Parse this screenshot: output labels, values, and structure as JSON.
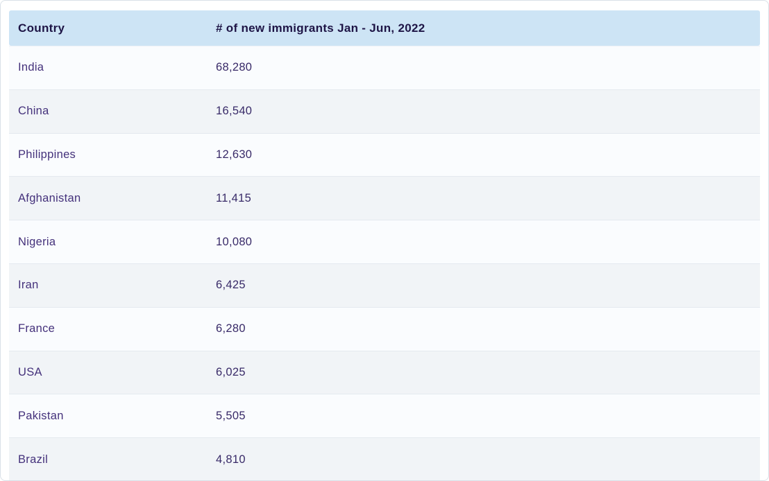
{
  "table": {
    "columns": [
      {
        "label": "Country"
      },
      {
        "label": "# of new immigrants Jan - Jun, 2022"
      }
    ],
    "rows": [
      {
        "country": "India",
        "value": "68,280"
      },
      {
        "country": "China",
        "value": "16,540"
      },
      {
        "country": "Philippines",
        "value": "12,630"
      },
      {
        "country": "Afghanistan",
        "value": "11,415"
      },
      {
        "country": "Nigeria",
        "value": "10,080"
      },
      {
        "country": "Iran",
        "value": "6,425"
      },
      {
        "country": "France",
        "value": "6,280"
      },
      {
        "country": "USA",
        "value": "6,025"
      },
      {
        "country": "Pakistan",
        "value": "5,505"
      },
      {
        "country": "Brazil",
        "value": "4,810"
      }
    ]
  },
  "colors": {
    "header_bg": "#cde4f5",
    "header_text": "#1e1546",
    "row_odd_bg": "#fafcfe",
    "row_even_bg": "#f1f4f7",
    "body_text": "#44317b",
    "value_text": "#382a68",
    "separator": "#e4e9ef"
  },
  "chart_data": {
    "type": "table",
    "title": "# of new immigrants Jan - Jun, 2022",
    "columns": [
      "Country",
      "# of new immigrants Jan - Jun, 2022"
    ],
    "categories": [
      "India",
      "China",
      "Philippines",
      "Afghanistan",
      "Nigeria",
      "Iran",
      "France",
      "USA",
      "Pakistan",
      "Brazil"
    ],
    "values": [
      68280,
      16540,
      12630,
      11415,
      10080,
      6425,
      6280,
      6025,
      5505,
      4810
    ]
  }
}
